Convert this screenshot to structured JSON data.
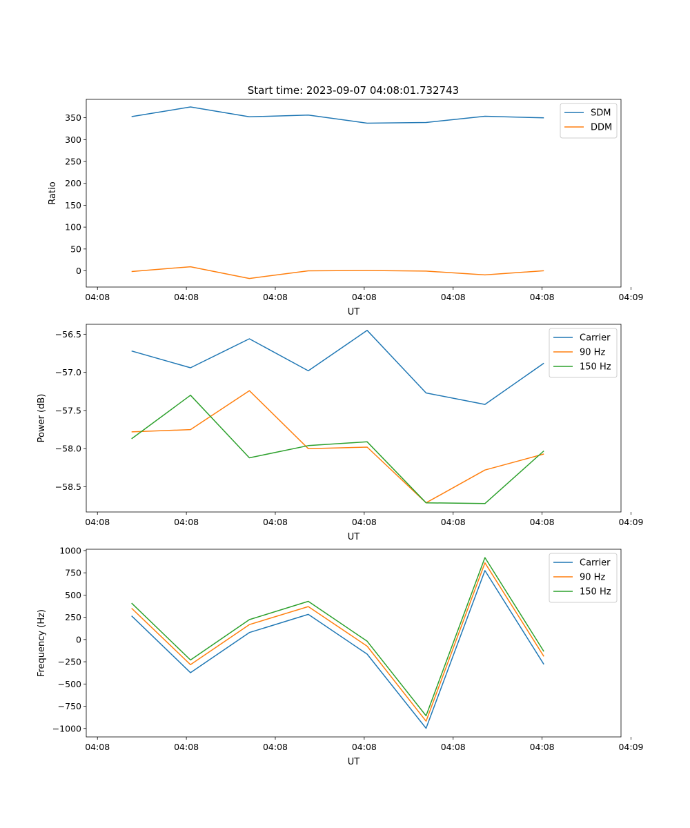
{
  "figure": {
    "title": "Start time: 2023-09-07 04:08:01.732743"
  },
  "chart_data": [
    {
      "type": "line",
      "title": "Start time: 2023-09-07 04:08:01.732743",
      "xlabel": "UT",
      "ylabel": "Ratio",
      "x": [
        1,
        2,
        3,
        4,
        5,
        6,
        7,
        8
      ],
      "xlim": [
        0.23,
        9.31
      ],
      "x_ticks": [
        0.42,
        1.93,
        3.44,
        4.95,
        6.46,
        7.97,
        9.48
      ],
      "x_tick_labels": [
        "04:08",
        "04:08",
        "04:08",
        "04:08",
        "04:08",
        "04:08",
        "04:09"
      ],
      "ylim": [
        -37,
        392
      ],
      "y_ticks": [
        0,
        50,
        100,
        150,
        200,
        250,
        300,
        350
      ],
      "y_tick_labels": [
        "0",
        "50",
        "100",
        "150",
        "200",
        "250",
        "300",
        "350"
      ],
      "legend": "top-right",
      "series": [
        {
          "name": "SDM",
          "color": "#1f77b4",
          "values": [
            352.5,
            374.6,
            352.1,
            356.2,
            337.6,
            339.2,
            353.4,
            349.7
          ]
        },
        {
          "name": "DDM",
          "color": "#ff7f0e",
          "values": [
            -1.5,
            9.4,
            -17.5,
            0.1,
            0.9,
            -0.5,
            -9.3,
            0.3
          ]
        }
      ]
    },
    {
      "type": "line",
      "title": "",
      "xlabel": "UT",
      "ylabel": "Power (dB)",
      "x": [
        1,
        2,
        3,
        4,
        5,
        6,
        7,
        8
      ],
      "xlim": [
        0.23,
        9.31
      ],
      "x_ticks": [
        0.42,
        1.93,
        3.44,
        4.95,
        6.46,
        7.97,
        9.48
      ],
      "x_tick_labels": [
        "04:08",
        "04:08",
        "04:08",
        "04:08",
        "04:08",
        "04:08",
        "04:09"
      ],
      "ylim": [
        -58.83,
        -56.37
      ],
      "y_ticks": [
        -56.5,
        -57.0,
        -57.5,
        -58.0,
        -58.5
      ],
      "y_tick_labels": [
        "−56.5",
        "−57.0",
        "−57.5",
        "−58.0",
        "−58.5"
      ],
      "legend": "top-right",
      "series": [
        {
          "name": "Carrier",
          "color": "#1f77b4",
          "values": [
            -56.72,
            -56.94,
            -56.56,
            -56.98,
            -56.45,
            -57.27,
            -57.42,
            -56.88
          ]
        },
        {
          "name": "90 Hz",
          "color": "#ff7f0e",
          "values": [
            -57.78,
            -57.75,
            -57.24,
            -58.0,
            -57.98,
            -58.71,
            -58.28,
            -58.07
          ]
        },
        {
          "name": "150 Hz",
          "color": "#2ca02c",
          "values": [
            -57.87,
            -57.3,
            -58.12,
            -57.96,
            -57.91,
            -58.71,
            -58.72,
            -58.03
          ]
        }
      ]
    },
    {
      "type": "line",
      "title": "",
      "xlabel": "UT",
      "ylabel": "Frequency (Hz)",
      "x": [
        1,
        2,
        3,
        4,
        5,
        6,
        7,
        8
      ],
      "xlim": [
        0.23,
        9.31
      ],
      "x_ticks": [
        0.42,
        1.93,
        3.44,
        4.95,
        6.46,
        7.97,
        9.48
      ],
      "x_tick_labels": [
        "04:08",
        "04:08",
        "04:08",
        "04:08",
        "04:08",
        "04:08",
        "04:09"
      ],
      "ylim": [
        -1095,
        1015
      ],
      "y_ticks": [
        1000,
        750,
        500,
        250,
        0,
        -250,
        -500,
        -750,
        -1000
      ],
      "y_tick_labels": [
        "1000",
        "750",
        "500",
        "250",
        "0",
        "−250",
        "−500",
        "−750",
        "−1000"
      ],
      "legend": "top-right",
      "series": [
        {
          "name": "Carrier",
          "color": "#1f77b4",
          "values": [
            266,
            -373,
            79,
            283,
            -164,
            -998,
            775,
            -279
          ]
        },
        {
          "name": "90 Hz",
          "color": "#ff7f0e",
          "values": [
            352,
            -283,
            168,
            370,
            -75,
            -918,
            862,
            -190
          ]
        },
        {
          "name": "150 Hz",
          "color": "#2ca02c",
          "values": [
            409,
            -230,
            224,
            429,
            -19,
            -858,
            921,
            -134
          ]
        }
      ]
    }
  ]
}
